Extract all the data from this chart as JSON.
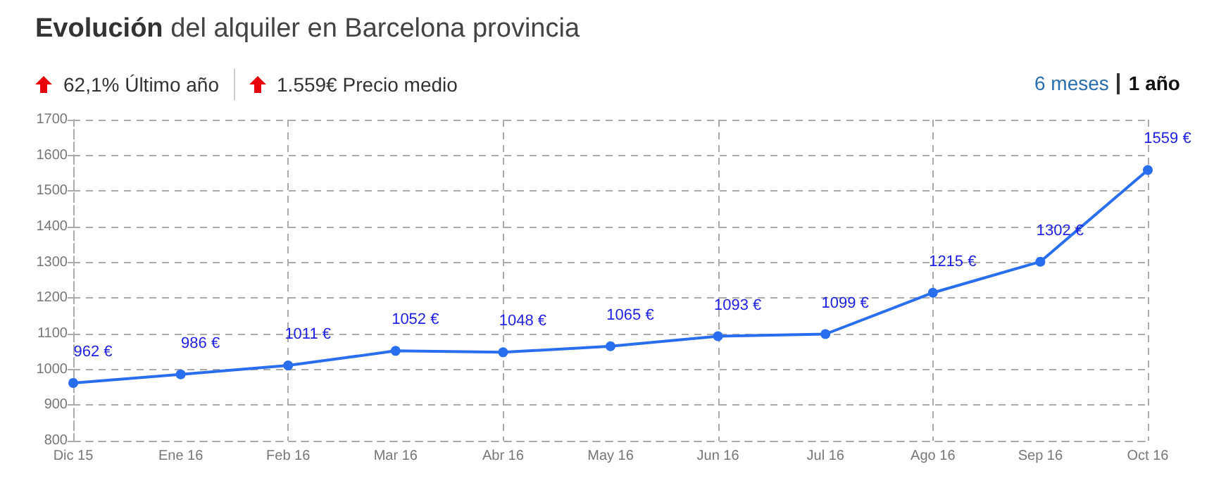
{
  "chart_data": {
    "type": "line",
    "title": "Evolución del alquiler en Barcelona provincia",
    "annotations": [
      "62,1% Último año",
      "1.559€ Precio medio",
      "6 meses",
      "1 año"
    ],
    "categories": [
      "Dic 15",
      "Ene 16",
      "Feb 16",
      "Mar 16",
      "Abr 16",
      "May 16",
      "Jun 16",
      "Jul 16",
      "Ago 16",
      "Sep 16",
      "Oct 16"
    ],
    "series": [
      {
        "color": "#2a6ef0",
        "values": [
          962,
          986,
          1011,
          1052,
          1048,
          1065,
          1093,
          1099,
          1215,
          1302,
          1559
        ],
        "value_labels": [
          "962 €",
          "986 €",
          "1011 €",
          "1052 €",
          "1048 €",
          "1065 €",
          "1093 €",
          "1099 €",
          "1215 €",
          "1302 €",
          "1559 €"
        ]
      }
    ],
    "ylim": [
      800,
      1700
    ],
    "yticks": [
      800,
      900,
      1000,
      1100,
      1200,
      1300,
      1400,
      1500,
      1600,
      1700
    ],
    "grid": true,
    "marker": "circle",
    "line_style": "solid"
  }
}
